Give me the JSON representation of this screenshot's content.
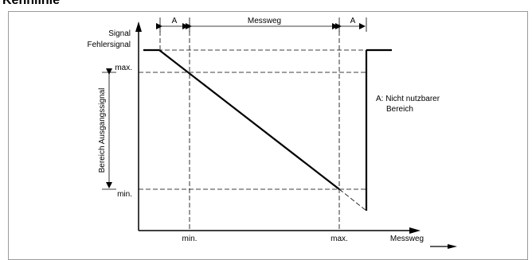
{
  "heading": "Kennlinie",
  "labels": {
    "signal": "Signal",
    "fehlersignal": "Fehlersignal",
    "y_max": "max.",
    "y_min": "min.",
    "bereich_ausgangssignal": "Bereich Ausgangssignal",
    "x_min": "min.",
    "x_max": "max.",
    "messweg_axis": "Messweg",
    "dim_a_left": "A",
    "dim_messweg": "Messweg",
    "dim_a_right": "A",
    "note_line1": "A: Nicht nutzbarer",
    "note_line2": "Bereich"
  }
}
